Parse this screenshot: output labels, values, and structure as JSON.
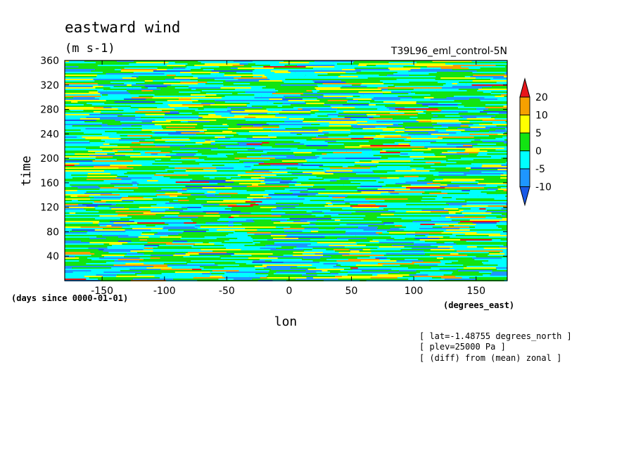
{
  "chart_data": {
    "type": "heatmap",
    "title": "eastward wind",
    "units_label": "(m s-1)",
    "experiment": "T39L96_eml_control-5N",
    "xlabel": "lon",
    "x_units": "(degrees_east)",
    "ylabel": "time",
    "y_units": "(days since 0000-01-01)",
    "xlim": [
      -180,
      175
    ],
    "ylim": [
      0,
      360
    ],
    "x_ticks": [
      "-150",
      "-100",
      "-50",
      "0",
      "50",
      "100",
      "150"
    ],
    "y_ticks": [
      "40",
      "80",
      "120",
      "160",
      "200",
      "240",
      "280",
      "320",
      "360"
    ],
    "colorbar": {
      "levels": [
        "20",
        "10",
        "5",
        "0",
        "-5",
        "-10"
      ],
      "colors": [
        "#e8161a",
        "#f6a000",
        "#ffff00",
        "#12e412",
        "#00ffff",
        "#1e96ff",
        "#1a5ae8"
      ]
    },
    "notes": [
      "[ lat=-1.48755 degrees_north ]",
      "[ plev=25000 Pa ]",
      "[ (diff) from (mean) zonal ]"
    ]
  }
}
